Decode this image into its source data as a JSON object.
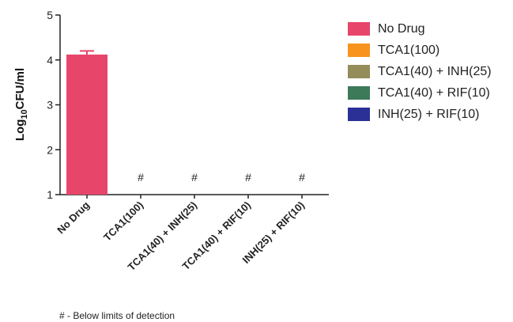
{
  "chart_data": {
    "type": "bar",
    "categories": [
      "No Drug",
      "TCA1(100)",
      "TCA1(40) + INH(25)",
      "TCA1(40) + RIF(10)",
      "INH(25) + RIF(10)"
    ],
    "values": [
      4.12,
      null,
      null,
      null,
      null
    ],
    "error": [
      0.08,
      null,
      null,
      null,
      null
    ],
    "markers": [
      "",
      "#",
      "#",
      "#",
      "#"
    ],
    "ylabel_base": "Log",
    "ylabel_sub": "10",
    "ylabel_rest": "CFU/ml",
    "ylim": [
      1,
      5
    ],
    "yticks": [
      "1",
      "2",
      "3",
      "4",
      "5"
    ],
    "colors": [
      "#e8456b",
      "#f7941d",
      "#948c5a",
      "#3d7a5a",
      "#2b3097"
    ],
    "legend": [
      {
        "label": "No Drug",
        "color": "#e8456b"
      },
      {
        "label": "TCA1(100)",
        "color": "#f7941d"
      },
      {
        "label": "TCA1(40) + INH(25)",
        "color": "#948c5a"
      },
      {
        "label": "TCA1(40) + RIF(10)",
        "color": "#3d7a5a"
      },
      {
        "label": "INH(25) + RIF(10)",
        "color": "#2b3097"
      }
    ],
    "legend_position": "right",
    "grid": false,
    "footnote": "# - Below limits of detection"
  }
}
